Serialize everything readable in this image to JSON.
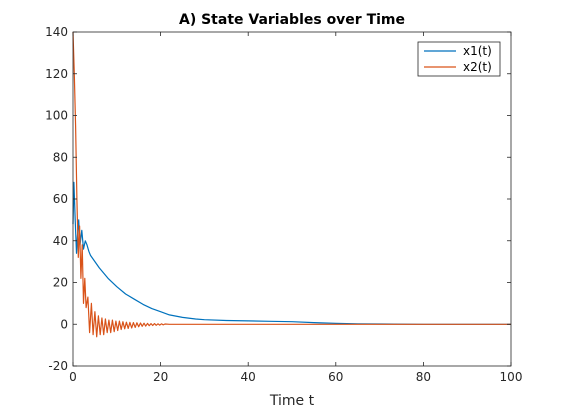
{
  "chart_data": {
    "type": "line",
    "title": "A) State Variables over Time",
    "xlabel": "Time t",
    "ylabel": "",
    "xlim": [
      0,
      100
    ],
    "ylim": [
      -20,
      140
    ],
    "xticks": [
      0,
      20,
      40,
      60,
      80,
      100
    ],
    "yticks": [
      -20,
      0,
      20,
      40,
      60,
      80,
      100,
      120,
      140
    ],
    "xtick_labels": [
      "0",
      "20",
      "40",
      "60",
      "80",
      "100"
    ],
    "ytick_labels": [
      "-20",
      "0",
      "20",
      "40",
      "60",
      "80",
      "100",
      "120",
      "140"
    ],
    "grid": false,
    "legend_position": "top-right",
    "series": [
      {
        "name": "x1(t)",
        "color": "#0072bd",
        "x": [
          0,
          0.2,
          0.5,
          0.8,
          1.0,
          1.3,
          1.6,
          2.0,
          2.4,
          2.8,
          3.2,
          3.6,
          4,
          5,
          6,
          8,
          10,
          12,
          14,
          16,
          18,
          20,
          22,
          25,
          28,
          30,
          35,
          40,
          45,
          50,
          55,
          60,
          65,
          70,
          80,
          90,
          100
        ],
        "y": [
          48,
          68,
          50,
          34,
          42,
          50,
          38,
          45,
          36,
          40,
          38,
          35,
          33,
          30,
          27,
          22,
          18,
          14.5,
          12,
          9.5,
          7.5,
          6,
          4.5,
          3.3,
          2.5,
          2.2,
          1.8,
          1.6,
          1.4,
          1.2,
          0.8,
          0.4,
          0.2,
          0.1,
          0,
          0,
          0
        ]
      },
      {
        "name": "x2(t)",
        "color": "#d95319",
        "x": [
          0,
          0.3,
          0.6,
          0.9,
          1.2,
          1.5,
          1.8,
          2.1,
          2.4,
          2.7,
          3.0,
          3.4,
          3.8,
          4.2,
          4.6,
          5.0,
          5.4,
          5.8,
          6.2,
          6.6,
          7.0,
          7.4,
          7.8,
          8.2,
          8.6,
          9.0,
          9.4,
          9.8,
          10.2,
          10.6,
          11.0,
          11.4,
          11.8,
          12.2,
          12.6,
          13.0,
          13.4,
          13.8,
          14.2,
          14.6,
          15.0,
          15.4,
          15.8,
          16.2,
          16.6,
          17.0,
          17.4,
          17.8,
          18.2,
          18.6,
          19.0,
          19.4,
          19.8,
          20.2,
          20.6,
          21,
          22,
          24,
          26,
          28,
          30,
          35,
          40,
          50,
          60,
          70,
          80,
          90,
          100
        ],
        "y": [
          140,
          120,
          95,
          60,
          32,
          47,
          22,
          38,
          10,
          22,
          8,
          13,
          -4,
          10,
          -5,
          6,
          -6,
          4,
          -5,
          3,
          -5,
          2.5,
          -4,
          2,
          -4,
          2,
          -3.5,
          1.5,
          -3,
          1.5,
          -2.5,
          1.2,
          -2.2,
          1,
          -2,
          0.9,
          -1.8,
          0.8,
          -1.5,
          0.7,
          -1.2,
          0.6,
          -1,
          0.5,
          -0.9,
          0.4,
          -0.7,
          0.3,
          -0.6,
          0.3,
          -0.5,
          0.2,
          -0.4,
          0.2,
          -0.3,
          0.1,
          0,
          0,
          0,
          0,
          0,
          0,
          0,
          0,
          0,
          0,
          0,
          0,
          0
        ]
      }
    ]
  }
}
